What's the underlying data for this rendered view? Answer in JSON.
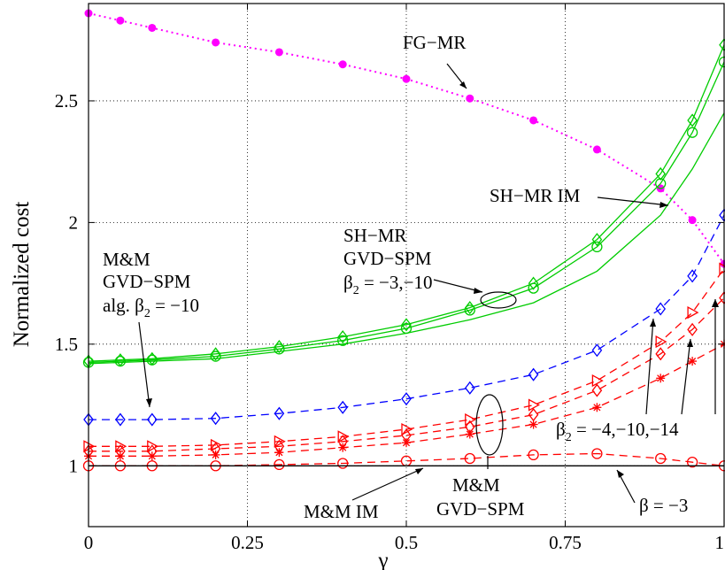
{
  "chart_data": {
    "type": "line",
    "xlabel": "γ",
    "ylabel": "Normalized cost",
    "xlim": [
      0,
      1
    ],
    "ylim": [
      0.75,
      2.9
    ],
    "xticks": [
      0,
      0.25,
      0.5,
      0.75,
      1
    ],
    "xtick_labels": [
      "0",
      "0.25",
      "0.5",
      "0.75",
      "1"
    ],
    "yticks": [
      1,
      1.5,
      2,
      2.5
    ],
    "ytick_labels": [
      "1",
      "1.5",
      "2",
      "2.5"
    ],
    "grid": true,
    "series": [
      {
        "name": "FG−MR",
        "color": "#ff00ff",
        "style": "dotted",
        "marker": "dot",
        "x": [
          0,
          0.05,
          0.1,
          0.2,
          0.3,
          0.4,
          0.5,
          0.6,
          0.7,
          0.8,
          0.9,
          0.95,
          1
        ],
        "y": [
          2.86,
          2.83,
          2.8,
          2.74,
          2.7,
          2.65,
          2.59,
          2.51,
          2.42,
          2.3,
          2.14,
          2.01,
          1.83
        ]
      },
      {
        "color": "#00cc00",
        "style": "solid",
        "marker": "diamond",
        "x": [
          0,
          0.05,
          0.1,
          0.2,
          0.3,
          0.4,
          0.5,
          0.6,
          0.7,
          0.8,
          0.9,
          0.95,
          1
        ],
        "y": [
          1.43,
          1.435,
          1.44,
          1.46,
          1.49,
          1.53,
          1.58,
          1.65,
          1.75,
          1.93,
          2.2,
          2.42,
          2.73
        ]
      },
      {
        "color": "#00cc00",
        "style": "solid",
        "marker": "circle",
        "x": [
          0,
          0.05,
          0.1,
          0.2,
          0.3,
          0.4,
          0.5,
          0.6,
          0.7,
          0.8,
          0.9,
          0.95,
          1
        ],
        "y": [
          1.425,
          1.43,
          1.435,
          1.45,
          1.48,
          1.515,
          1.565,
          1.64,
          1.73,
          1.9,
          2.16,
          2.37,
          2.66
        ]
      },
      {
        "color": "#00cc00",
        "style": "solid",
        "marker": "none",
        "x": [
          0,
          0.05,
          0.1,
          0.2,
          0.3,
          0.4,
          0.5,
          0.6,
          0.7,
          0.8,
          0.9,
          0.95,
          1
        ],
        "y": [
          1.42,
          1.425,
          1.43,
          1.44,
          1.47,
          1.5,
          1.545,
          1.6,
          1.67,
          1.8,
          2.03,
          2.22,
          2.45
        ]
      },
      {
        "color": "#0000ff",
        "style": "dashed",
        "marker": "diamond",
        "x": [
          0,
          0.05,
          0.1,
          0.2,
          0.3,
          0.4,
          0.5,
          0.6,
          0.7,
          0.8,
          0.9,
          0.95,
          1
        ],
        "y": [
          1.19,
          1.19,
          1.19,
          1.195,
          1.215,
          1.24,
          1.275,
          1.32,
          1.375,
          1.475,
          1.645,
          1.78,
          2.03
        ]
      },
      {
        "color": "#ff0000",
        "style": "dashed",
        "marker": "triangle-right",
        "x": [
          0,
          0.05,
          0.1,
          0.2,
          0.3,
          0.4,
          0.5,
          0.6,
          0.7,
          0.8,
          0.9,
          0.95,
          1
        ],
        "y": [
          1.08,
          1.08,
          1.08,
          1.085,
          1.1,
          1.12,
          1.15,
          1.19,
          1.25,
          1.35,
          1.51,
          1.63,
          1.81
        ]
      },
      {
        "color": "#ff0000",
        "style": "dashed",
        "marker": "diamond",
        "x": [
          0,
          0.05,
          0.1,
          0.2,
          0.3,
          0.4,
          0.5,
          0.6,
          0.7,
          0.8,
          0.9,
          0.95,
          1
        ],
        "y": [
          1.06,
          1.06,
          1.06,
          1.07,
          1.08,
          1.1,
          1.125,
          1.16,
          1.21,
          1.31,
          1.46,
          1.56,
          1.69
        ]
      },
      {
        "color": "#ff0000",
        "style": "dashed",
        "marker": "star",
        "x": [
          0,
          0.05,
          0.1,
          0.2,
          0.3,
          0.4,
          0.5,
          0.6,
          0.7,
          0.8,
          0.9,
          0.95,
          1
        ],
        "y": [
          1.04,
          1.04,
          1.04,
          1.045,
          1.055,
          1.075,
          1.095,
          1.13,
          1.17,
          1.24,
          1.36,
          1.43,
          1.5
        ]
      },
      {
        "color": "#ff0000",
        "style": "dashed",
        "marker": "circle",
        "x": [
          0,
          0.05,
          0.1,
          0.2,
          0.3,
          0.4,
          0.5,
          0.6,
          0.7,
          0.8,
          0.9,
          0.95,
          1
        ],
        "y": [
          1.0,
          1.0,
          1.0,
          1.0,
          1.005,
          1.01,
          1.02,
          1.03,
          1.045,
          1.05,
          1.03,
          1.015,
          1.0
        ]
      },
      {
        "color": "#000000",
        "style": "solid",
        "marker": "none",
        "x": [
          0,
          1
        ],
        "y": [
          1.0,
          1.0
        ]
      }
    ],
    "annotations": [
      {
        "id": "fgmr",
        "lines": [
          "FG−MR"
        ]
      },
      {
        "id": "shmr-im",
        "lines": [
          "SH−MR IM"
        ]
      },
      {
        "id": "shmr-gvd",
        "lines": [
          "SH−MR",
          "GVD−SPM"
        ],
        "beta": {
          "symbol": "β",
          "sub": "2",
          "rest": " = −3,−10"
        }
      },
      {
        "id": "mm-alg",
        "lines": [
          "M&M",
          "GVD−SPM"
        ],
        "beta": {
          "prefix": "alg. ",
          "symbol": "β",
          "sub": "2",
          "rest": " = −10"
        }
      },
      {
        "id": "beta-multi",
        "beta": {
          "symbol": "β",
          "sub": "2",
          "rest": " = −4,−10,−14"
        }
      },
      {
        "id": "mm-im",
        "lines": [
          "M&M IM"
        ]
      },
      {
        "id": "mm-gvd",
        "lines": [
          "M&M",
          "GVD−SPM"
        ]
      },
      {
        "id": "beta-3",
        "lines": [
          "β = −3"
        ]
      }
    ]
  }
}
